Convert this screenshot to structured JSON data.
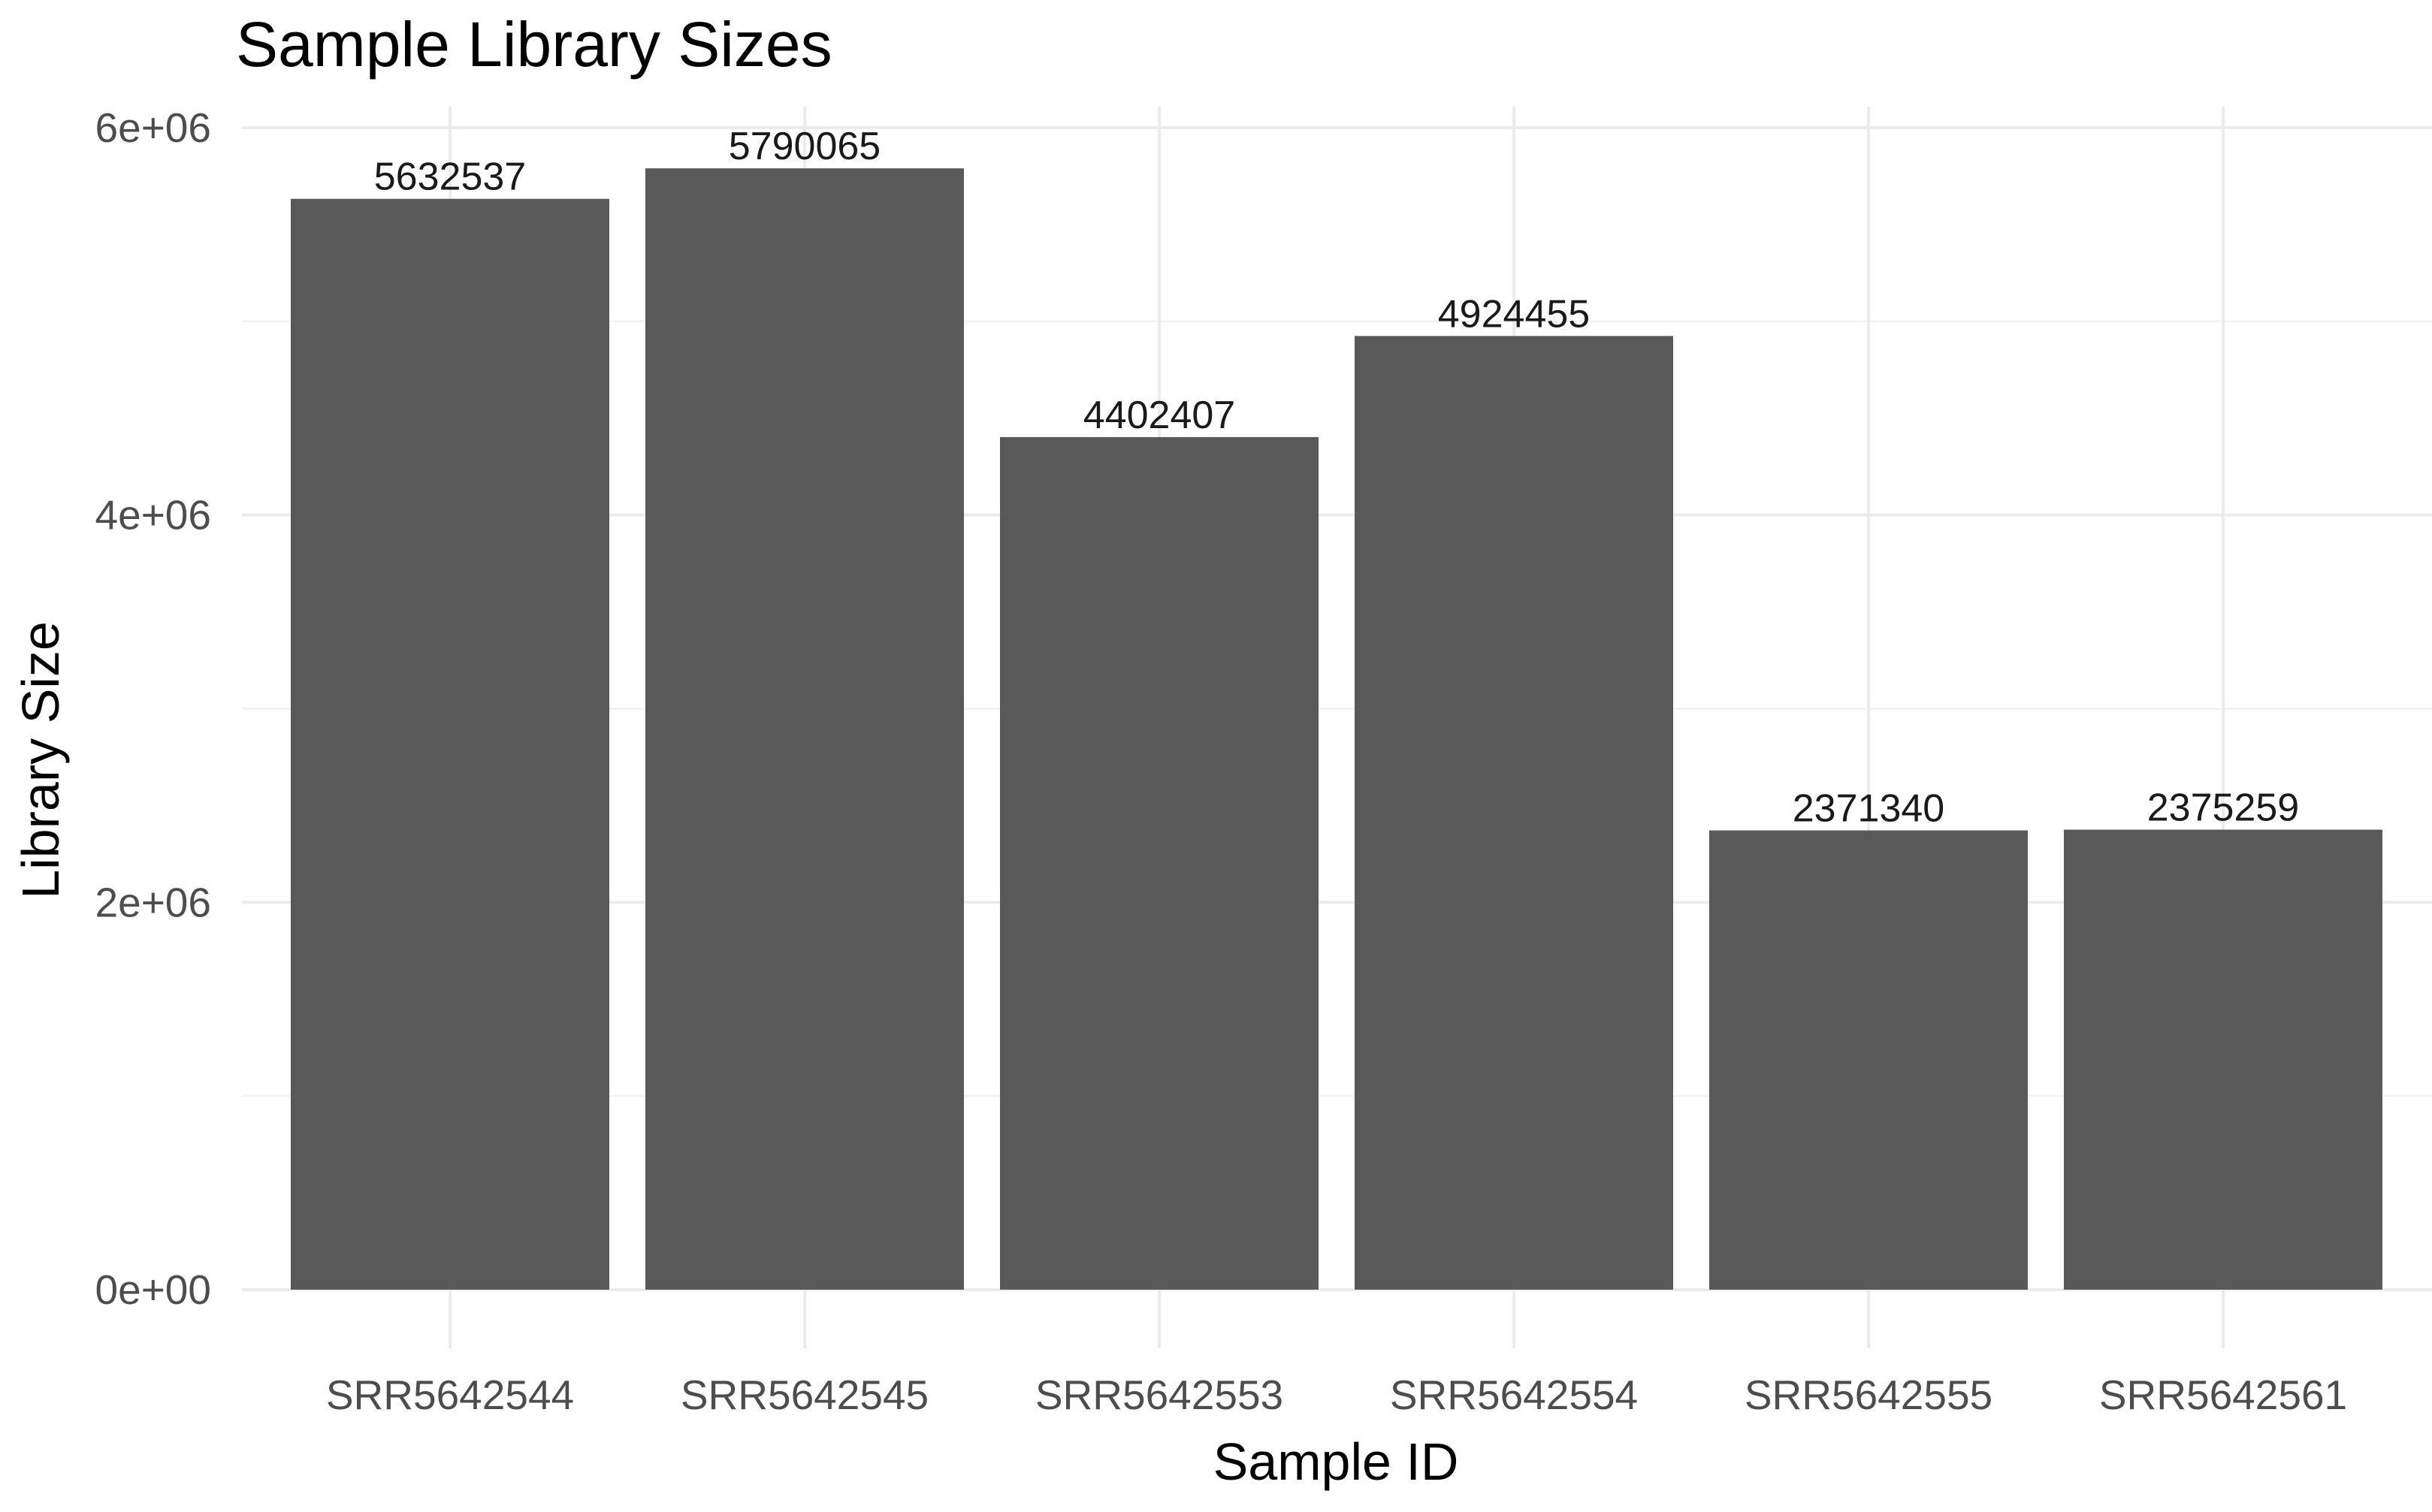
{
  "chart_data": {
    "type": "bar",
    "title": "Sample Library Sizes",
    "xlabel": "Sample ID",
    "ylabel": "Library Size",
    "categories": [
      "SRR5642544",
      "SRR5642545",
      "SRR5642553",
      "SRR5642554",
      "SRR5642555",
      "SRR5642561"
    ],
    "values": [
      5632537,
      5790065,
      4402407,
      4924455,
      2371340,
      2375259
    ],
    "data_labels": [
      "5632537",
      "5790065",
      "4402407",
      "4924455",
      "2371340",
      "2375259"
    ],
    "yticks": [
      0,
      2000000,
      4000000,
      6000000
    ],
    "ytick_labels": [
      "0e+00",
      "2e+06",
      "4e+06",
      "6e+06"
    ],
    "ylim": [
      0,
      6000000
    ],
    "grid": true,
    "legend": "none",
    "colors": {
      "bar": "#595959",
      "grid_major": "#ebebeb",
      "grid_minor": "#f2f2f2",
      "tick_text": "#4d4d4d",
      "background": "#ffffff"
    }
  }
}
